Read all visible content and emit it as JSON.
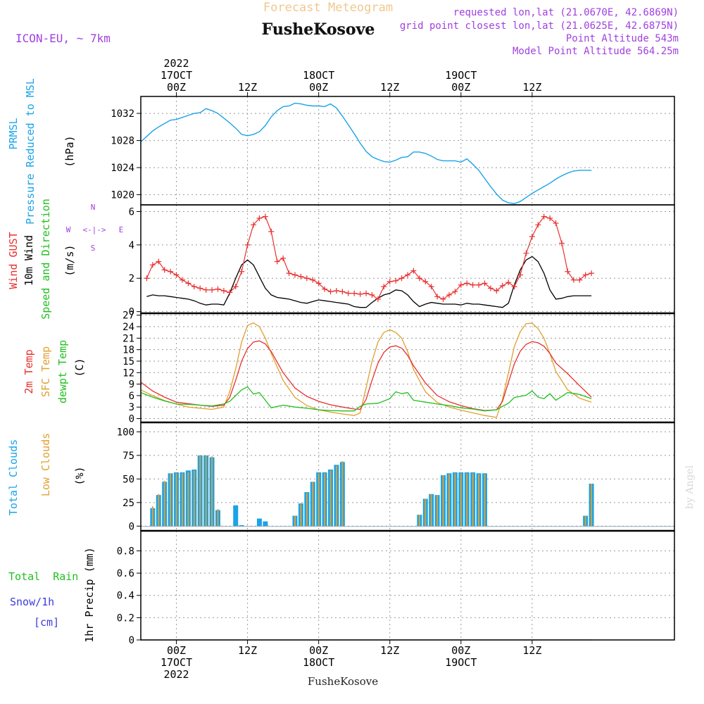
{
  "header": {
    "forecast_label": "Forecast Meteogram",
    "station": "FusheKosove",
    "model": "ICON-EU, ~ 7km",
    "requested": "requested lon,lat (21.0670E, 42.6869N)",
    "closest": "grid point closest lon,lat (21.0625E, 42.6875N)",
    "point_altitude": "Point Altitude 543m",
    "model_altitude": "Model Point Altitude 564.25m",
    "footer_station": "FusheKosove",
    "watermark": "by Angel"
  },
  "time_axis": {
    "unit": "hours from 17OCT2022 00Z",
    "range": [
      -6,
      84
    ],
    "top_labels": [
      {
        "h": 0,
        "lines": [
          "2022",
          "17OCT",
          "00Z"
        ]
      },
      {
        "h": 12,
        "lines": [
          "12Z"
        ]
      },
      {
        "h": 24,
        "lines": [
          "18OCT",
          "00Z"
        ]
      },
      {
        "h": 36,
        "lines": [
          "12Z"
        ]
      },
      {
        "h": 48,
        "lines": [
          "19OCT",
          "00Z"
        ]
      },
      {
        "h": 60,
        "lines": [
          "12Z"
        ]
      }
    ],
    "bottom_labels": [
      {
        "h": 0,
        "lines": [
          "00Z",
          "17OCT",
          "2022"
        ]
      },
      {
        "h": 12,
        "lines": [
          "12Z"
        ]
      },
      {
        "h": 24,
        "lines": [
          "00Z",
          "18OCT"
        ]
      },
      {
        "h": 36,
        "lines": [
          "12Z"
        ]
      },
      {
        "h": 48,
        "lines": [
          "00Z",
          "19OCT"
        ]
      },
      {
        "h": 60,
        "lines": [
          "12Z"
        ]
      }
    ]
  },
  "panels": {
    "pressure": {
      "labels": [
        "PRMSL",
        "Pressure Reduced to MSL"
      ],
      "unit": "(hPa)",
      "ticks": [
        1020,
        1024,
        1028,
        1032
      ],
      "ylim": [
        1018.5,
        1034.5
      ]
    },
    "wind": {
      "labels": [
        "Wind GUST",
        "10m Wind",
        "Speed and Direction"
      ],
      "unit": "(m/s)",
      "ticks": [
        0,
        2,
        4,
        6
      ],
      "ylim": [
        -0.1,
        6.4
      ],
      "compass": {
        "n": "N",
        "s": "S",
        "w": "W",
        "e": "E",
        "arrow": "<-|->"
      }
    },
    "temp": {
      "labels": [
        "2m Temp",
        "SFC Temp",
        "dewpt Temp"
      ],
      "unit": "(C)",
      "ticks": [
        0,
        3,
        6,
        9,
        12,
        15,
        18,
        21,
        24,
        27
      ],
      "ylim": [
        -1,
        27.5
      ]
    },
    "clouds": {
      "labels": [
        "Total Clouds",
        "Low Clouds"
      ],
      "unit": "(%)",
      "ticks": [
        0,
        25,
        50,
        75,
        100
      ],
      "ylim": [
        -5,
        110
      ]
    },
    "precip": {
      "labels": [
        "Total  Rain",
        "Snow/1h",
        "[cm]"
      ],
      "ylabel": "1hr Precip (mm)",
      "ticks": [
        "0",
        "0.2",
        "0.4",
        "0.6",
        "0.8"
      ],
      "tick_values": [
        0,
        0.2,
        0.4,
        0.6,
        0.8
      ],
      "ylim": [
        0,
        0.98
      ]
    }
  },
  "colors": {
    "prmsl": "#1aa3e8",
    "gust": "#e83030",
    "wind": "#000000",
    "t2m": "#e83030",
    "sfc": "#e0a030",
    "dewpt": "#20c020",
    "total_clouds": "#1aa3e8",
    "low_clouds": "#e0a030",
    "rain": "#20c020",
    "snow": "#3c3ce0",
    "header_purple": "#a040e0",
    "forecast_label": "#f0c890"
  },
  "chart_data": [
    {
      "type": "line",
      "name_key": "prmsl",
      "x": [
        -6,
        -5,
        -4,
        -3,
        -2,
        -1,
        0,
        1,
        2,
        3,
        4,
        5,
        6,
        7,
        8,
        9,
        10,
        11,
        12,
        13,
        14,
        15,
        16,
        17,
        18,
        19,
        20,
        21,
        22,
        23,
        24,
        25,
        26,
        27,
        28,
        29,
        30,
        31,
        32,
        33,
        34,
        35,
        36,
        37,
        38,
        39,
        40,
        41,
        42,
        43,
        44,
        45,
        46,
        47,
        48,
        49,
        50,
        51,
        52,
        53,
        54,
        55,
        56,
        57,
        58,
        59,
        60,
        61,
        62,
        63,
        64,
        65,
        66,
        67,
        68,
        69,
        70,
        71,
        72,
        73,
        74,
        75,
        76
      ],
      "y": [
        1027.8,
        1028.6,
        1029.4,
        1030,
        1030.5,
        1031,
        1031.1,
        1031.4,
        1031.7,
        1032,
        1032.1,
        1032.7,
        1032.4,
        1032,
        1031.3,
        1030.6,
        1029.8,
        1028.9,
        1028.7,
        1028.9,
        1029.3,
        1030.2,
        1031.5,
        1032.4,
        1033,
        1033.1,
        1033.5,
        1033.4,
        1033.2,
        1033.1,
        1033.1,
        1033.0,
        1033.4,
        1032.8,
        1031.6,
        1030.3,
        1029,
        1027.6,
        1026.4,
        1025.6,
        1025.2,
        1024.9,
        1024.8,
        1025.1,
        1025.5,
        1025.6,
        1026.3,
        1026.3,
        1026.1,
        1025.7,
        1025.2,
        1025,
        1025,
        1025,
        1024.8,
        1025.3,
        1024.5,
        1023.6,
        1022.4,
        1021.2,
        1020.1,
        1019.2,
        1018.8,
        1018.7,
        1019,
        1019.6,
        1020.2,
        1020.7,
        1021.2,
        1021.7,
        1022.3,
        1022.8,
        1023.2,
        1023.5,
        1023.6,
        1023.6,
        1023.6,
        1023.6,
        1023.6,
        1023.6,
        1023.6,
        1023.6,
        1023.6
      ],
      "plot_until": 70
    },
    {
      "type": "line",
      "name_key": "wind",
      "x": [
        -5,
        -4,
        -3,
        -2,
        -1,
        0,
        1,
        2,
        3,
        4,
        5,
        6,
        7,
        8,
        9,
        10,
        11,
        12,
        13,
        14,
        15,
        16,
        17,
        18,
        19,
        20,
        21,
        22,
        23,
        24,
        25,
        26,
        27,
        28,
        29,
        30,
        31,
        32,
        33,
        34,
        35,
        36,
        37,
        38,
        39,
        40,
        41,
        42,
        43,
        44,
        45,
        46,
        47,
        48,
        49,
        50,
        51,
        52,
        53,
        54,
        55,
        56,
        57,
        58,
        59,
        60,
        61,
        62,
        63,
        64,
        65,
        66,
        67,
        68,
        69,
        70
      ],
      "y": [
        0.9,
        1.0,
        0.95,
        0.95,
        0.9,
        0.85,
        0.8,
        0.75,
        0.65,
        0.5,
        0.4,
        0.45,
        0.45,
        0.4,
        1.1,
        2.0,
        2.8,
        3.1,
        2.8,
        2.1,
        1.4,
        1.0,
        0.85,
        0.8,
        0.75,
        0.65,
        0.55,
        0.5,
        0.6,
        0.7,
        0.65,
        0.6,
        0.55,
        0.5,
        0.45,
        0.3,
        0.25,
        0.25,
        0.55,
        0.8,
        1.0,
        1.1,
        1.3,
        1.25,
        1.0,
        0.6,
        0.3,
        0.45,
        0.55,
        0.5,
        0.45,
        0.45,
        0.45,
        0.4,
        0.5,
        0.45,
        0.45,
        0.4,
        0.35,
        0.3,
        0.25,
        0.5,
        1.6,
        2.5,
        3.1,
        3.3,
        3.0,
        2.3,
        1.3,
        0.75,
        0.8,
        0.9,
        0.95,
        0.95,
        0.95,
        0.95
      ]
    },
    {
      "type": "line",
      "name_key": "gust",
      "x": [
        -5,
        -4,
        -3,
        -2,
        -1,
        0,
        1,
        2,
        3,
        4,
        5,
        6,
        7,
        8,
        9,
        10,
        11,
        12,
        13,
        14,
        15,
        16,
        17,
        18,
        19,
        20,
        21,
        22,
        23,
        24,
        25,
        26,
        27,
        28,
        29,
        30,
        31,
        32,
        33,
        34,
        35,
        36,
        37,
        38,
        39,
        40,
        41,
        42,
        43,
        44,
        45,
        46,
        47,
        48,
        49,
        50,
        51,
        52,
        53,
        54,
        55,
        56,
        57,
        58,
        59,
        60,
        61,
        62,
        63,
        64,
        65,
        66,
        67,
        68,
        69,
        70
      ],
      "y": [
        2.0,
        2.8,
        3.0,
        2.5,
        2.4,
        2.2,
        1.9,
        1.7,
        1.5,
        1.4,
        1.3,
        1.3,
        1.35,
        1.25,
        1.15,
        1.5,
        2.4,
        4.0,
        5.2,
        5.6,
        5.7,
        4.8,
        3.0,
        3.2,
        2.3,
        2.2,
        2.1,
        2.0,
        1.9,
        1.7,
        1.35,
        1.2,
        1.25,
        1.2,
        1.1,
        1.1,
        1.05,
        1.1,
        1.0,
        0.75,
        1.5,
        1.8,
        1.85,
        2.0,
        2.2,
        2.45,
        2.0,
        1.8,
        1.5,
        0.9,
        0.75,
        1.0,
        1.2,
        1.6,
        1.7,
        1.6,
        1.6,
        1.7,
        1.4,
        1.25,
        1.55,
        1.75,
        1.5,
        2.2,
        3.5,
        4.5,
        5.2,
        5.7,
        5.6,
        5.3,
        4.1,
        2.4,
        1.9,
        1.9,
        2.2,
        2.3
      ]
    },
    {
      "type": "line",
      "name_key": "t2m",
      "x": [
        -6,
        -4,
        -2,
        0,
        2,
        4,
        6,
        8,
        9,
        10,
        11,
        12,
        13,
        14,
        15,
        16,
        18,
        20,
        22,
        24,
        26,
        28,
        30,
        31,
        32,
        33,
        34,
        35,
        36,
        37,
        38,
        39,
        40,
        42,
        44,
        46,
        48,
        50,
        52,
        54,
        55,
        56,
        57,
        58,
        59,
        60,
        61,
        62,
        63,
        64,
        66,
        68,
        70
      ],
      "y": [
        9.5,
        7.2,
        5.6,
        4.3,
        3.9,
        3.5,
        3.2,
        3.5,
        5.5,
        10,
        15,
        18.3,
        20,
        20.3,
        19.5,
        17.5,
        12,
        8,
        5.8,
        4.5,
        3.6,
        3.0,
        2.5,
        2.4,
        5,
        10,
        14.5,
        17.3,
        18.7,
        19,
        18.4,
        16.5,
        13.8,
        9.3,
        6,
        4.4,
        3.4,
        2.6,
        2.1,
        2.3,
        4.5,
        9.5,
        14.3,
        17.6,
        19.4,
        20.1,
        19.8,
        18.9,
        17,
        14.5,
        11.7,
        8.6,
        5.6
      ]
    },
    {
      "type": "line",
      "name_key": "sfc",
      "x": [
        -6,
        -4,
        -2,
        0,
        2,
        4,
        6,
        8,
        9,
        10,
        11,
        12,
        13,
        14,
        15,
        16,
        18,
        20,
        22,
        24,
        26,
        28,
        30,
        31,
        32,
        33,
        34,
        35,
        36,
        37,
        38,
        39,
        40,
        42,
        44,
        46,
        48,
        50,
        52,
        54,
        55,
        56,
        57,
        58,
        59,
        60,
        61,
        62,
        63,
        64,
        66,
        68,
        70
      ],
      "y": [
        7.5,
        6,
        4.7,
        3.8,
        3.0,
        2.7,
        2.4,
        3.0,
        7,
        13,
        20,
        24.3,
        25,
        24,
        21,
        17,
        10,
        5.5,
        3.4,
        2.3,
        1.7,
        1.2,
        0.8,
        1.5,
        8,
        15,
        20,
        22.5,
        23.2,
        22.5,
        21,
        17.5,
        12.8,
        7,
        4.2,
        3,
        2.2,
        1.5,
        0.8,
        0.3,
        5,
        12,
        18.8,
        22.7,
        24.8,
        24.9,
        23.5,
        21,
        17,
        12.3,
        7.5,
        5.3,
        4.3
      ]
    },
    {
      "type": "line",
      "name_key": "dewpt",
      "x": [
        -6,
        -4,
        -2,
        0,
        2,
        4,
        6,
        8,
        9,
        10,
        11,
        12,
        13,
        14,
        15,
        16,
        18,
        20,
        22,
        24,
        26,
        28,
        30,
        31,
        32,
        34,
        36,
        37,
        38,
        39,
        40,
        42,
        44,
        46,
        48,
        50,
        52,
        54,
        55,
        56,
        57,
        58,
        59,
        60,
        61,
        62,
        63,
        64,
        66,
        68,
        70
      ],
      "y": [
        6.8,
        5.6,
        4.6,
        3.8,
        3.7,
        3.5,
        3.3,
        3.8,
        4.5,
        6,
        7.5,
        8.3,
        6.4,
        6.8,
        4.8,
        2.8,
        3.5,
        3.0,
        2.7,
        2.3,
        2.1,
        2.0,
        2.0,
        3.2,
        3.8,
        4.0,
        5.2,
        7.0,
        6.5,
        6.8,
        4.8,
        4.3,
        3.8,
        3.4,
        2.8,
        2.5,
        2.0,
        2.3,
        3.2,
        4.0,
        5.5,
        5.8,
        6.1,
        7.2,
        5.6,
        5.2,
        6.5,
        4.8,
        6.8,
        6.3,
        5.2
      ]
    },
    {
      "type": "bar",
      "name_key": "clouds",
      "x": [
        -4,
        -3,
        -2,
        -1,
        0,
        1,
        2,
        3,
        4,
        5,
        6,
        7,
        8,
        10,
        11,
        14,
        15,
        20,
        21,
        22,
        23,
        24,
        25,
        26,
        27,
        28,
        29,
        30,
        41,
        42,
        43,
        44,
        45,
        46,
        47,
        48,
        49,
        50,
        51,
        52,
        53,
        69,
        70
      ],
      "total": [
        19,
        33,
        47,
        56,
        57,
        57,
        59,
        60,
        75,
        75,
        73,
        17,
        0,
        22,
        1,
        8,
        5,
        11,
        24,
        36,
        47,
        57,
        57,
        60,
        65,
        68,
        0,
        0,
        12,
        29,
        34,
        33,
        54,
        56,
        57,
        57,
        57,
        57,
        56,
        56,
        0,
        11,
        45
      ],
      "low": [
        21,
        34,
        48,
        56,
        56,
        56,
        57,
        59,
        75,
        75,
        74,
        18,
        0,
        0,
        0,
        0,
        0,
        11,
        23,
        35,
        47,
        56,
        56,
        59,
        64,
        69,
        0,
        0,
        12,
        29,
        34,
        33,
        54,
        55,
        56,
        56,
        56,
        56,
        55,
        55,
        0,
        11,
        45
      ]
    },
    {
      "type": "line",
      "name_key": "precip",
      "x": [
        -6,
        70
      ],
      "rain": [
        0,
        0
      ],
      "snow": [
        0,
        0
      ]
    }
  ]
}
